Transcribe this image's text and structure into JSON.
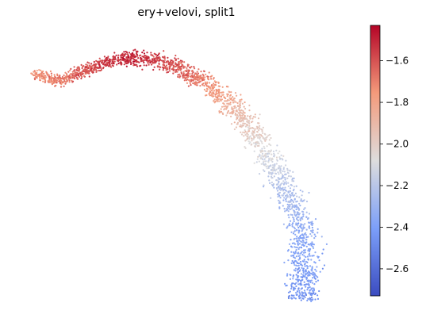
{
  "chart_data": {
    "type": "scatter",
    "title": "ery+velovi, split1",
    "xlabel": "",
    "ylabel": "",
    "axes_visible": false,
    "grid": false,
    "colormap": "coolwarm",
    "colorbar": {
      "position": "right",
      "vmin": -2.73,
      "vmax": -1.43,
      "ticks": [
        -1.6,
        -1.8,
        -2.0,
        -2.2,
        -2.4,
        -2.6
      ],
      "tick_labels": [
        "−1.6",
        "−1.8",
        "−2.0",
        "−2.2",
        "−2.4",
        "−2.6"
      ]
    },
    "trajectory": [
      {
        "x": 0.05,
        "y": 0.86,
        "value": -1.75
      },
      {
        "x": 0.13,
        "y": 0.83,
        "value": -1.7
      },
      {
        "x": 0.22,
        "y": 0.88,
        "value": -1.58
      },
      {
        "x": 0.33,
        "y": 0.92,
        "value": -1.5
      },
      {
        "x": 0.45,
        "y": 0.9,
        "value": -1.58
      },
      {
        "x": 0.55,
        "y": 0.83,
        "value": -1.7
      },
      {
        "x": 0.65,
        "y": 0.72,
        "value": -1.9
      },
      {
        "x": 0.72,
        "y": 0.6,
        "value": -2.05
      },
      {
        "x": 0.78,
        "y": 0.46,
        "value": -2.2
      },
      {
        "x": 0.84,
        "y": 0.3,
        "value": -2.33
      },
      {
        "x": 0.85,
        "y": 0.15,
        "value": -2.4
      },
      {
        "x": 0.84,
        "y": 0.02,
        "value": -2.45
      }
    ]
  }
}
